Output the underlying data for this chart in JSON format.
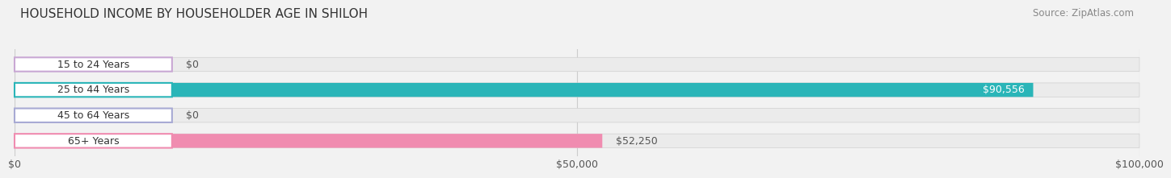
{
  "title": "HOUSEHOLD INCOME BY HOUSEHOLDER AGE IN SHILOH",
  "source": "Source: ZipAtlas.com",
  "categories": [
    "15 to 24 Years",
    "25 to 44 Years",
    "45 to 64 Years",
    "65+ Years"
  ],
  "values": [
    0,
    90556,
    0,
    52250
  ],
  "bar_colors": [
    "#c9a8d4",
    "#2ab5b8",
    "#a8aad4",
    "#f08cb0"
  ],
  "value_labels": [
    "$0",
    "$90,556",
    "$0",
    "$52,250"
  ],
  "value_label_inside": [
    false,
    true,
    false,
    false
  ],
  "xlim": [
    0,
    100000
  ],
  "xticks": [
    0,
    50000,
    100000
  ],
  "xtick_labels": [
    "$0",
    "$50,000",
    "$100,000"
  ],
  "bar_height": 0.55,
  "background_color": "#f2f2f2",
  "bar_bg_color": "#ebebeb",
  "title_fontsize": 11,
  "source_fontsize": 8.5,
  "label_fontsize": 9,
  "value_fontsize": 9,
  "tick_fontsize": 9
}
